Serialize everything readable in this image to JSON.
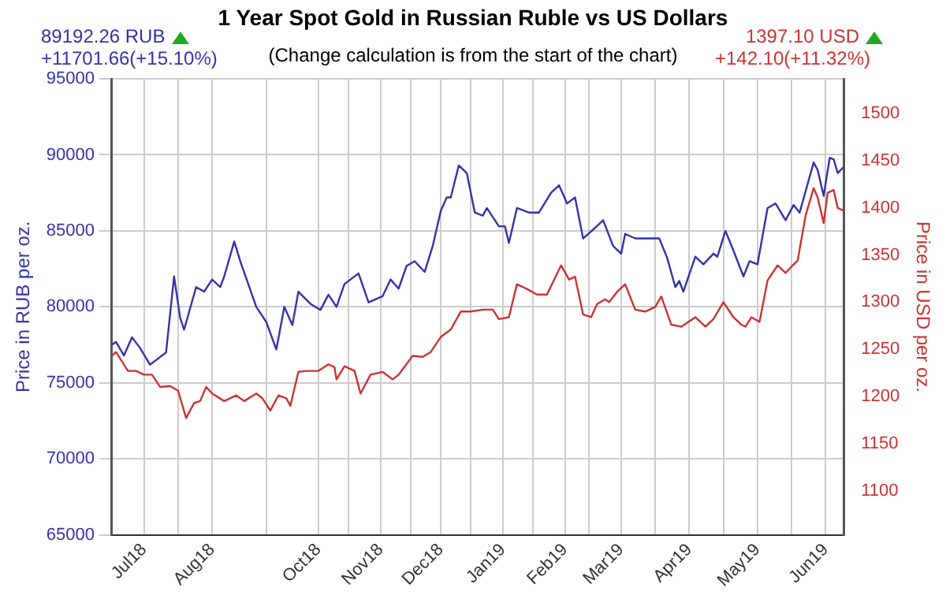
{
  "chart_data": {
    "type": "line",
    "title": "1 Year Spot Gold in Russian Ruble vs US Dollars",
    "subtitle": "(Change calculation is from the start of the chart)",
    "annotations": [
      "89192.26 RUB",
      "+11701.66(+15.10%)",
      "1397.10 USD",
      "+142.10(+11.32%)"
    ],
    "ylabel": "Price in RUB per oz.",
    "y2label": "Price in USD per oz.",
    "xlim": [
      "2018-06-20",
      "2019-06-20"
    ],
    "xticks": [
      {
        "value": "2018-07-06",
        "label": "Jul18"
      },
      {
        "value": "2018-07-23",
        "label": null
      },
      {
        "value": "2018-08-09",
        "label": "Aug18"
      },
      {
        "value": "2018-09-05",
        "label": null
      },
      {
        "value": "2018-10-01",
        "label": "Oct18"
      },
      {
        "value": "2018-10-16",
        "label": null
      },
      {
        "value": "2018-11-01",
        "label": "Nov18"
      },
      {
        "value": "2018-11-16",
        "label": null
      },
      {
        "value": "2018-12-01",
        "label": "Dec18"
      },
      {
        "value": "2018-12-16",
        "label": null
      },
      {
        "value": "2019-01-01",
        "label": "Jan19"
      },
      {
        "value": "2019-01-16",
        "label": null
      },
      {
        "value": "2019-02-01",
        "label": "Feb19"
      },
      {
        "value": "2019-02-13",
        "label": null
      },
      {
        "value": "2019-03-01",
        "label": "Mar19"
      },
      {
        "value": "2019-03-18",
        "label": null
      },
      {
        "value": "2019-04-04",
        "label": "Apr19"
      },
      {
        "value": "2019-04-21",
        "label": null
      },
      {
        "value": "2019-05-08",
        "label": "May19"
      },
      {
        "value": "2019-05-25",
        "label": null
      },
      {
        "value": "2019-06-11",
        "label": "Jun19"
      }
    ],
    "ylim": [
      65000,
      95000
    ],
    "yticks": [
      65000,
      70000,
      75000,
      80000,
      85000,
      90000,
      95000
    ],
    "y2lim": [
      1053,
      1537
    ],
    "y2ticks": [
      1100,
      1150,
      1200,
      1250,
      1300,
      1350,
      1400,
      1450,
      1500
    ],
    "grid": true,
    "legend": false,
    "marker": "none",
    "line_style": "solid",
    "series": [
      {
        "color": "#3333aa",
        "x": [
          "2018-06-20",
          "2018-06-22",
          "2018-06-26",
          "2018-06-30",
          "2018-07-04",
          "2018-07-09",
          "2018-07-17",
          "2018-07-21",
          "2018-07-24",
          "2018-07-26",
          "2018-08-01",
          "2018-08-05",
          "2018-08-09",
          "2018-08-13",
          "2018-08-15",
          "2018-08-20",
          "2018-08-23",
          "2018-08-27",
          "2018-08-31",
          "2018-09-05",
          "2018-09-10",
          "2018-09-14",
          "2018-09-18",
          "2018-09-21",
          "2018-09-27",
          "2018-10-02",
          "2018-10-06",
          "2018-10-10",
          "2018-10-14",
          "2018-10-21",
          "2018-10-26",
          "2018-11-02",
          "2018-11-06",
          "2018-11-10",
          "2018-11-14",
          "2018-11-18",
          "2018-11-23",
          "2018-11-27",
          "2018-12-01",
          "2018-12-04",
          "2018-12-06",
          "2018-12-10",
          "2018-12-14",
          "2018-12-18",
          "2018-12-22",
          "2018-12-24",
          "2018-12-30",
          "2019-01-02",
          "2019-01-04",
          "2019-01-08",
          "2019-01-14",
          "2019-01-19",
          "2019-01-25",
          "2019-01-29",
          "2019-02-02",
          "2019-02-06",
          "2019-02-10",
          "2019-02-16",
          "2019-02-20",
          "2019-02-25",
          "2019-03-01",
          "2019-03-03",
          "2019-03-08",
          "2019-03-15",
          "2019-03-20",
          "2019-03-24",
          "2019-03-28",
          "2019-03-30",
          "2019-04-01",
          "2019-04-07",
          "2019-04-11",
          "2019-04-16",
          "2019-04-18",
          "2019-04-22",
          "2019-04-26",
          "2019-05-01",
          "2019-05-04",
          "2019-05-08",
          "2019-05-13",
          "2019-05-17",
          "2019-05-22",
          "2019-05-26",
          "2019-05-29",
          "2019-06-05",
          "2019-06-07",
          "2019-06-10",
          "2019-06-13",
          "2019-06-15",
          "2019-06-17",
          "2019-06-20"
        ],
        "values": [
          77500,
          77700,
          76800,
          78000,
          77300,
          76200,
          77000,
          82000,
          79300,
          78500,
          81300,
          81000,
          81800,
          81300,
          82000,
          84300,
          83000,
          81500,
          80000,
          79000,
          77200,
          80000,
          78800,
          81000,
          80200,
          79800,
          80800,
          80000,
          81500,
          82200,
          80300,
          80700,
          81800,
          81200,
          82700,
          83000,
          82300,
          84000,
          86300,
          87200,
          87200,
          89300,
          88800,
          86200,
          86000,
          86500,
          85300,
          85300,
          84200,
          86500,
          86200,
          86200,
          87500,
          88000,
          86800,
          87200,
          84500,
          85200,
          85700,
          84000,
          83500,
          84800,
          84500,
          84500,
          84500,
          83200,
          81300,
          81700,
          81000,
          83300,
          82800,
          83500,
          83300,
          85000,
          83700,
          82000,
          83000,
          82800,
          86500,
          86800,
          85700,
          86700,
          86200,
          89500,
          89000,
          87300,
          89800,
          89700,
          88800,
          89200
        ]
      },
      {
        "color": "#cc3333",
        "axis": "y2",
        "x": [
          "2018-06-20",
          "2018-06-22",
          "2018-06-28",
          "2018-07-02",
          "2018-07-06",
          "2018-07-10",
          "2018-07-14",
          "2018-07-19",
          "2018-07-23",
          "2018-07-27",
          "2018-07-31",
          "2018-08-03",
          "2018-08-06",
          "2018-08-09",
          "2018-08-15",
          "2018-08-21",
          "2018-08-25",
          "2018-08-31",
          "2018-09-03",
          "2018-09-07",
          "2018-09-11",
          "2018-09-15",
          "2018-09-17",
          "2018-09-21",
          "2018-09-25",
          "2018-10-01",
          "2018-10-06",
          "2018-10-09",
          "2018-10-10",
          "2018-10-14",
          "2018-10-19",
          "2018-10-22",
          "2018-10-27",
          "2018-11-02",
          "2018-11-07",
          "2018-11-10",
          "2018-11-17",
          "2018-11-22",
          "2018-11-26",
          "2018-12-01",
          "2018-12-06",
          "2018-12-11",
          "2018-12-16",
          "2018-12-22",
          "2018-12-27",
          "2018-12-30",
          "2019-01-04",
          "2019-01-08",
          "2019-01-13",
          "2019-01-18",
          "2019-01-23",
          "2019-01-30",
          "2019-02-03",
          "2019-02-06",
          "2019-02-10",
          "2019-02-14",
          "2019-02-17",
          "2019-02-21",
          "2019-02-23",
          "2019-02-27",
          "2019-03-03",
          "2019-03-08",
          "2019-03-13",
          "2019-03-18",
          "2019-03-21",
          "2019-03-26",
          "2019-03-31",
          "2019-04-07",
          "2019-04-12",
          "2019-04-16",
          "2019-04-21",
          "2019-04-26",
          "2019-04-30",
          "2019-05-02",
          "2019-05-05",
          "2019-05-09",
          "2019-05-13",
          "2019-05-18",
          "2019-05-22",
          "2019-05-26",
          "2019-05-28",
          "2019-06-01",
          "2019-06-05",
          "2019-06-07",
          "2019-06-10",
          "2019-06-12",
          "2019-06-15",
          "2019-06-17",
          "2019-06-20"
        ],
        "values": [
          1243,
          1247,
          1227,
          1227,
          1223,
          1223,
          1210,
          1211,
          1206,
          1177,
          1193,
          1195,
          1210,
          1203,
          1195,
          1201,
          1195,
          1203,
          1198,
          1185,
          1201,
          1198,
          1190,
          1226,
          1227,
          1227,
          1234,
          1231,
          1218,
          1232,
          1227,
          1203,
          1223,
          1226,
          1218,
          1223,
          1243,
          1242,
          1247,
          1263,
          1271,
          1290,
          1290,
          1292,
          1292,
          1282,
          1284,
          1319,
          1314,
          1308,
          1308,
          1339,
          1324,
          1327,
          1287,
          1284,
          1298,
          1303,
          1300,
          1311,
          1319,
          1292,
          1290,
          1295,
          1306,
          1276,
          1274,
          1284,
          1274,
          1282,
          1300,
          1284,
          1276,
          1274,
          1284,
          1279,
          1323,
          1339,
          1331,
          1340,
          1344,
          1392,
          1421,
          1411,
          1384,
          1416,
          1419,
          1400,
          1397
        ]
      }
    ]
  }
}
